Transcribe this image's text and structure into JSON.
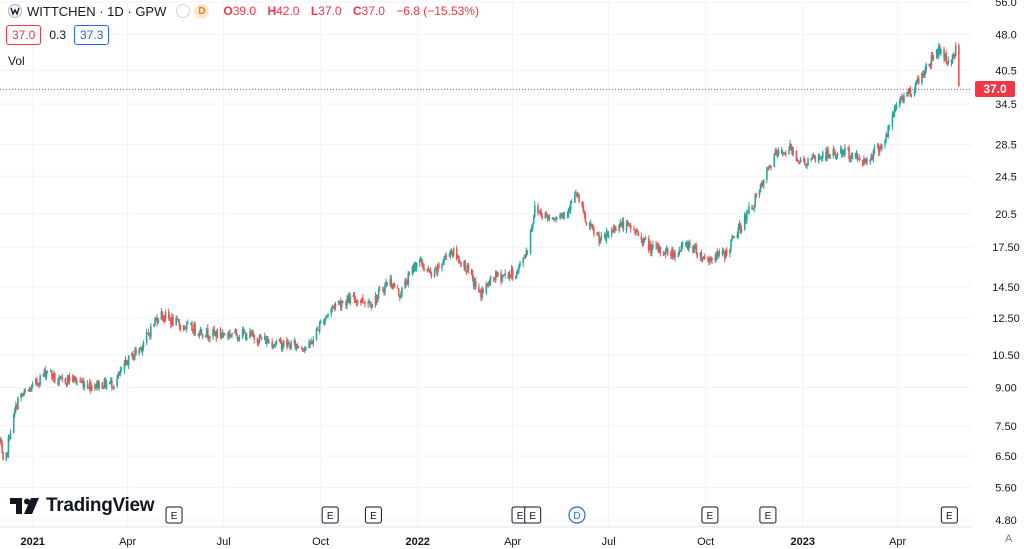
{
  "legend": {
    "symbol": "WITTCHEN · 1D · GPW",
    "delay_badge": "D",
    "open_label": "O",
    "open": "39.0",
    "high_label": "H",
    "high": "42.0",
    "low_label": "L",
    "low": "37.0",
    "close_label": "C",
    "close": "37.0",
    "change": "−6.8 (−15.53%)"
  },
  "indicator_inputs": {
    "upper": "37.0",
    "mid": "0.3",
    "lower": "37.3"
  },
  "volume_label": "Vol",
  "brand": "TradingView",
  "autoscale_label": "A",
  "colors": {
    "up": "#26a69a",
    "down": "#ef5350",
    "accent": "#2962ff",
    "last_price": "#f23645"
  },
  "chart_data": {
    "type": "candlestick",
    "y_scale": "log",
    "ylim": [
      4.8,
      56.0
    ],
    "yticks": [
      "56.0",
      "48.0",
      "40.5",
      "34.5",
      "28.5",
      "24.5",
      "20.5",
      "17.50",
      "14.50",
      "12.50",
      "10.50",
      "9.00",
      "7.50",
      "6.50",
      "5.60",
      "4.80"
    ],
    "xticks": [
      "2021",
      "Apr",
      "Jul",
      "Oct",
      "2022",
      "Apr",
      "Jul",
      "Oct",
      "2023",
      "Apr"
    ],
    "last_price": "37.0",
    "trend": [
      [
        "2020-12-01",
        7.0
      ],
      [
        "2020-12-05",
        6.0
      ],
      [
        "2020-12-10",
        7.2
      ],
      [
        "2020-12-18",
        8.5
      ],
      [
        "2021-01-01",
        9.0
      ],
      [
        "2021-01-15",
        9.8
      ],
      [
        "2021-01-25",
        9.2
      ],
      [
        "2021-02-05",
        9.4
      ],
      [
        "2021-02-25",
        9.1
      ],
      [
        "2021-03-20",
        9.2
      ],
      [
        "2021-04-01",
        10.2
      ],
      [
        "2021-04-15",
        11.0
      ],
      [
        "2021-05-01",
        12.8
      ],
      [
        "2021-05-20",
        12.1
      ],
      [
        "2021-06-20",
        11.6
      ],
      [
        "2021-07-20",
        11.6
      ],
      [
        "2021-08-20",
        11.1
      ],
      [
        "2021-09-20",
        10.9
      ],
      [
        "2021-10-01",
        12.2
      ],
      [
        "2021-10-15",
        13.4
      ],
      [
        "2021-11-01",
        13.7
      ],
      [
        "2021-11-20",
        13.5
      ],
      [
        "2021-12-05",
        15.0
      ],
      [
        "2021-12-15",
        14.0
      ],
      [
        "2022-01-01",
        16.5
      ],
      [
        "2022-01-15",
        15.2
      ],
      [
        "2022-02-01",
        17.3
      ],
      [
        "2022-02-15",
        16.0
      ],
      [
        "2022-03-01",
        14.0
      ],
      [
        "2022-03-15",
        15.2
      ],
      [
        "2022-04-05",
        15.5
      ],
      [
        "2022-04-15",
        17.4
      ],
      [
        "2022-04-22",
        21.0
      ],
      [
        "2022-05-05",
        20.2
      ],
      [
        "2022-05-20",
        20.5
      ],
      [
        "2022-06-01",
        22.5
      ],
      [
        "2022-06-10",
        19.5
      ],
      [
        "2022-06-25",
        18.0
      ],
      [
        "2022-07-10",
        19.6
      ],
      [
        "2022-07-25",
        19.0
      ],
      [
        "2022-08-10",
        17.4
      ],
      [
        "2022-09-01",
        17.0
      ],
      [
        "2022-09-15",
        17.8
      ],
      [
        "2022-10-01",
        16.5
      ],
      [
        "2022-10-20",
        17.0
      ],
      [
        "2022-11-01",
        19.0
      ],
      [
        "2022-11-20",
        22.5
      ],
      [
        "2022-12-05",
        27.0
      ],
      [
        "2022-12-20",
        28.0
      ],
      [
        "2023-01-01",
        26.0
      ],
      [
        "2023-01-20",
        27.0
      ],
      [
        "2023-02-10",
        27.5
      ],
      [
        "2023-03-01",
        26.3
      ],
      [
        "2023-03-20",
        29.0
      ],
      [
        "2023-04-01",
        35.0
      ],
      [
        "2023-04-15",
        37.0
      ],
      [
        "2023-05-01",
        42.0
      ],
      [
        "2023-05-10",
        44.8
      ],
      [
        "2023-05-20",
        42.0
      ],
      [
        "2023-05-26",
        44.5
      ],
      [
        "2023-05-29",
        37.0
      ]
    ],
    "event_markers": [
      {
        "date": "2021-05-15",
        "label": "E"
      },
      {
        "date": "2021-10-10",
        "label": "E"
      },
      {
        "date": "2021-11-20",
        "label": "E"
      },
      {
        "date": "2022-04-08",
        "label": "E"
      },
      {
        "date": "2022-04-20",
        "label": "E"
      },
      {
        "date": "2022-06-01",
        "label": "D"
      },
      {
        "date": "2022-10-05",
        "label": "E"
      },
      {
        "date": "2022-11-29",
        "label": "E"
      },
      {
        "date": "2023-05-20",
        "label": "E"
      }
    ]
  }
}
